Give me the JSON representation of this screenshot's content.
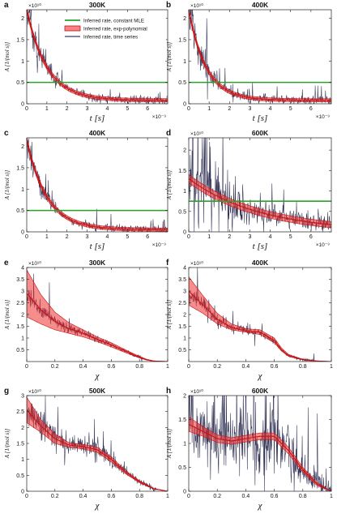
{
  "figure": {
    "background": "#ffffff"
  },
  "colors": {
    "constant_mle": "#2aa12a",
    "exp_poly_line": "#cc1111",
    "exp_poly_band": "#ee3030",
    "time_series": "#0b0b35"
  },
  "legend": {
    "items": [
      {
        "label": "Inferred rate, constant MLE",
        "style": "green-line"
      },
      {
        "label": "Inferred rate, exp-polynomial",
        "style": "red-band"
      },
      {
        "label": "Inferred rate, time series",
        "style": "dark-line"
      }
    ]
  },
  "chart_data": [
    {
      "panel": "a",
      "title": "300K",
      "type": "line",
      "xlabel": "t [s]",
      "ylabel": "A [1/(mol s)]",
      "x_multiplier": "×10⁻⁹",
      "y_multiplier": "×10¹⁰",
      "xlim": [
        0,
        7e-09
      ],
      "ylim": [
        0,
        22000000000.0
      ],
      "xticks": [
        "0",
        "1",
        "2",
        "3",
        "4",
        "5",
        "6"
      ],
      "yticks": [
        "0",
        "0.5",
        "1",
        "1.5",
        "2"
      ],
      "constant_mle": 5000000000.0,
      "fit": {
        "model": "exp",
        "A0": 22000000000.0,
        "A_inf": 800000000.0,
        "tau": 1e-09,
        "band_halfwidth": 600000000.0
      },
      "series_noise_scale": 0.22,
      "series_spikes": 0.25
    },
    {
      "panel": "b",
      "title": "400K",
      "type": "line",
      "xlabel": "t [s]",
      "ylabel": "A [1/(mol s)]",
      "x_multiplier": "×10⁻⁹",
      "y_multiplier": "×10¹⁰",
      "xlim": [
        0,
        7e-09
      ],
      "ylim": [
        0,
        22000000000.0
      ],
      "xticks": [
        "0",
        "1",
        "2",
        "3",
        "4",
        "5",
        "6"
      ],
      "yticks": [
        "0",
        "0.5",
        "1",
        "1.5",
        "2"
      ],
      "constant_mle": 5000000000.0,
      "fit": {
        "model": "exp",
        "A0": 22000000000.0,
        "A_inf": 800000000.0,
        "tau": 8.5e-10,
        "band_halfwidth": 600000000.0
      },
      "series_noise_scale": 0.25,
      "series_spikes": 0.35
    },
    {
      "panel": "c",
      "title": "400K",
      "type": "line",
      "xlabel": "t [s]",
      "ylabel": "A [1/(mol s)]",
      "x_multiplier": "×10⁻⁹",
      "y_multiplier": "",
      "xlim": [
        0,
        7e-09
      ],
      "ylim": [
        0,
        22000000000.0
      ],
      "xticks": [
        "0",
        "1",
        "2",
        "3",
        "4",
        "5",
        "6"
      ],
      "yticks": [
        "0",
        "0.5",
        "1",
        "1.5",
        "2"
      ],
      "constant_mle": 5000000000.0,
      "fit": {
        "model": "exp",
        "A0": 21500000000.0,
        "A_inf": 500000000.0,
        "tau": 1e-09,
        "band_halfwidth": 600000000.0
      },
      "series_noise_scale": 0.22,
      "series_spikes": 0.3
    },
    {
      "panel": "d",
      "title": "600K",
      "type": "line",
      "xlabel": "t [s]",
      "ylabel": "A [1/(mol s)]",
      "x_multiplier": "×10⁻⁹",
      "y_multiplier": "×10¹⁰",
      "xlim": [
        0,
        7e-09
      ],
      "ylim": [
        0,
        23000000000.0
      ],
      "xticks": [
        "0",
        "1",
        "2",
        "3",
        "4",
        "5",
        "6"
      ],
      "yticks": [
        "0",
        "0.5",
        "1",
        "1.5",
        "2"
      ],
      "constant_mle": 7500000000.0,
      "fit": {
        "model": "exp",
        "A0": 13000000000.0,
        "A_inf": 0.0,
        "tau": 3.5e-09,
        "band_halfwidth": 1000000000.0
      },
      "series_noise_scale": 0.55,
      "series_spikes": 0.6
    },
    {
      "panel": "e",
      "title": "300K",
      "type": "area",
      "xlabel": "χ",
      "ylabel": "A [1/(mol s)]",
      "y_multiplier": "×10¹⁰",
      "xlim": [
        0,
        1
      ],
      "ylim": [
        0,
        40000000000.0
      ],
      "xticks": [
        "0",
        "0.2",
        "0.4",
        "0.6",
        "0.8",
        "1"
      ],
      "yticks": [
        "0.5",
        "1",
        "1.5",
        "2",
        "2.5",
        "3",
        "3.5",
        "4"
      ],
      "fit_x": [
        0,
        0.1,
        0.2,
        0.3,
        0.4,
        0.5,
        0.6,
        0.7,
        0.8,
        0.85,
        0.9,
        1.0
      ],
      "fit_y": [
        2.9,
        2.2,
        1.7,
        1.4,
        1.2,
        0.95,
        0.7,
        0.45,
        0.18,
        0.08,
        0.02,
        0.0
      ],
      "band_lower": [
        1.9,
        1.6,
        1.35,
        1.2,
        1.05,
        0.85,
        0.62,
        0.38,
        0.15,
        0.06,
        0.01,
        0.0
      ],
      "band_upper": [
        3.9,
        2.85,
        2.1,
        1.65,
        1.35,
        1.05,
        0.8,
        0.5,
        0.22,
        0.1,
        0.03,
        0.0
      ],
      "series_xmax": 0.82,
      "series_noise_scale": 0.12,
      "series_spikes": 0.15
    },
    {
      "panel": "f",
      "title": "400K",
      "type": "area",
      "xlabel": "χ",
      "ylabel": "A [1/(mol s)]",
      "y_multiplier": "×10¹⁰",
      "xlim": [
        0,
        1
      ],
      "ylim": [
        0,
        40000000000.0
      ],
      "xticks": [
        "0",
        "0.2",
        "0.4",
        "0.6",
        "0.8",
        "1"
      ],
      "yticks": [
        "0.5",
        "1",
        "1.5",
        "2",
        "2.5",
        "3",
        "3.5",
        "4"
      ],
      "fit_x": [
        0,
        0.1,
        0.2,
        0.3,
        0.4,
        0.5,
        0.6,
        0.65,
        0.7,
        0.8,
        0.9,
        1.0
      ],
      "fit_y": [
        3.0,
        2.4,
        1.8,
        1.45,
        1.3,
        1.25,
        0.9,
        0.5,
        0.25,
        0.08,
        0.02,
        0.0
      ],
      "band_lower": [
        2.4,
        2.05,
        1.6,
        1.35,
        1.25,
        1.15,
        0.8,
        0.45,
        0.22,
        0.07,
        0.01,
        0.0
      ],
      "band_upper": [
        3.6,
        2.8,
        2.05,
        1.6,
        1.4,
        1.35,
        1.0,
        0.58,
        0.3,
        0.1,
        0.03,
        0.0
      ],
      "series_xmax": 0.88,
      "series_noise_scale": 0.12,
      "series_spikes": 0.2
    },
    {
      "panel": "g",
      "title": "500K",
      "type": "area",
      "xlabel": "χ",
      "ylabel": "A [1/(mol s)]",
      "y_multiplier": "×10¹⁰",
      "xlim": [
        0,
        1
      ],
      "ylim": [
        0,
        30000000000.0
      ],
      "xticks": [
        "0",
        "0.2",
        "0.4",
        "0.6",
        "0.8",
        "1"
      ],
      "yticks": [
        "0",
        "0.5",
        "1",
        "1.5",
        "2",
        "2.5",
        "3"
      ],
      "fit_x": [
        0,
        0.1,
        0.2,
        0.3,
        0.4,
        0.5,
        0.6,
        0.7,
        0.8,
        0.9,
        1.0
      ],
      "fit_y": [
        2.55,
        2.05,
        1.65,
        1.45,
        1.4,
        1.3,
        1.0,
        0.6,
        0.3,
        0.08,
        0.0
      ],
      "band_lower": [
        2.15,
        1.85,
        1.5,
        1.38,
        1.33,
        1.22,
        0.92,
        0.55,
        0.27,
        0.07,
        0.0
      ],
      "band_upper": [
        2.95,
        2.25,
        1.8,
        1.52,
        1.47,
        1.38,
        1.08,
        0.65,
        0.33,
        0.09,
        0.0
      ],
      "series_xmax": 0.92,
      "series_noise_scale": 0.18,
      "series_spikes": 0.3
    },
    {
      "panel": "h",
      "title": "600K",
      "type": "area",
      "xlabel": "χ",
      "ylabel": "A [1/(mol s)]",
      "y_multiplier": "×10¹⁰",
      "xlim": [
        0,
        1
      ],
      "ylim": [
        0,
        20000000000.0
      ],
      "xticks": [
        "0",
        "0.2",
        "0.4",
        "0.6",
        "0.8",
        "1"
      ],
      "yticks": [
        "0",
        "0.5",
        "1",
        "1.5",
        "2"
      ],
      "fit_x": [
        0,
        0.1,
        0.2,
        0.3,
        0.4,
        0.5,
        0.6,
        0.7,
        0.8,
        0.9,
        1.0
      ],
      "fit_y": [
        1.4,
        1.25,
        1.1,
        1.05,
        1.1,
        1.15,
        1.15,
        0.85,
        0.45,
        0.15,
        0.0
      ],
      "band_lower": [
        1.25,
        1.15,
        1.02,
        0.98,
        1.03,
        1.08,
        1.08,
        0.78,
        0.4,
        0.12,
        0.0
      ],
      "band_upper": [
        1.55,
        1.35,
        1.18,
        1.12,
        1.17,
        1.22,
        1.22,
        0.92,
        0.5,
        0.18,
        0.0
      ],
      "series_xmax": 1.0,
      "series_noise_scale": 0.5,
      "series_spikes": 0.6
    }
  ]
}
